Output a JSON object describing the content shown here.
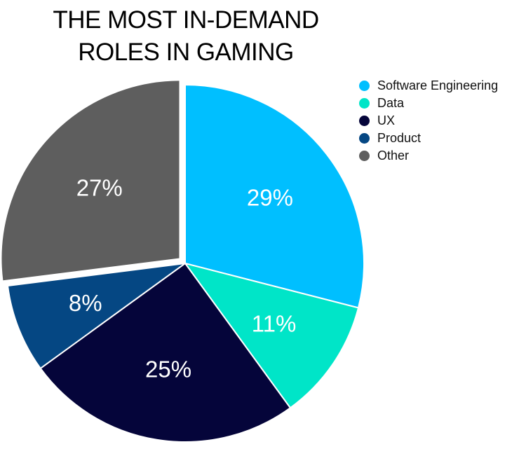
{
  "chart_data": {
    "type": "pie",
    "title": [
      "THE MOST IN-DEMAND",
      "ROLES IN GAMING"
    ],
    "slices": [
      {
        "label": "Software Engineering",
        "value": 29,
        "display": "29%",
        "color": "#00BFFF"
      },
      {
        "label": "Data",
        "value": 11,
        "display": "11%",
        "color": "#00E5C8"
      },
      {
        "label": "UX",
        "value": 25,
        "display": "25%",
        "color": "#05053A"
      },
      {
        "label": "Product",
        "value": 8,
        "display": "8%",
        "color": "#054783"
      },
      {
        "label": "Other",
        "value": 27,
        "display": "27%",
        "color": "#5E5E5E"
      }
    ],
    "legend_position": "top-right",
    "exploded": "Other"
  }
}
